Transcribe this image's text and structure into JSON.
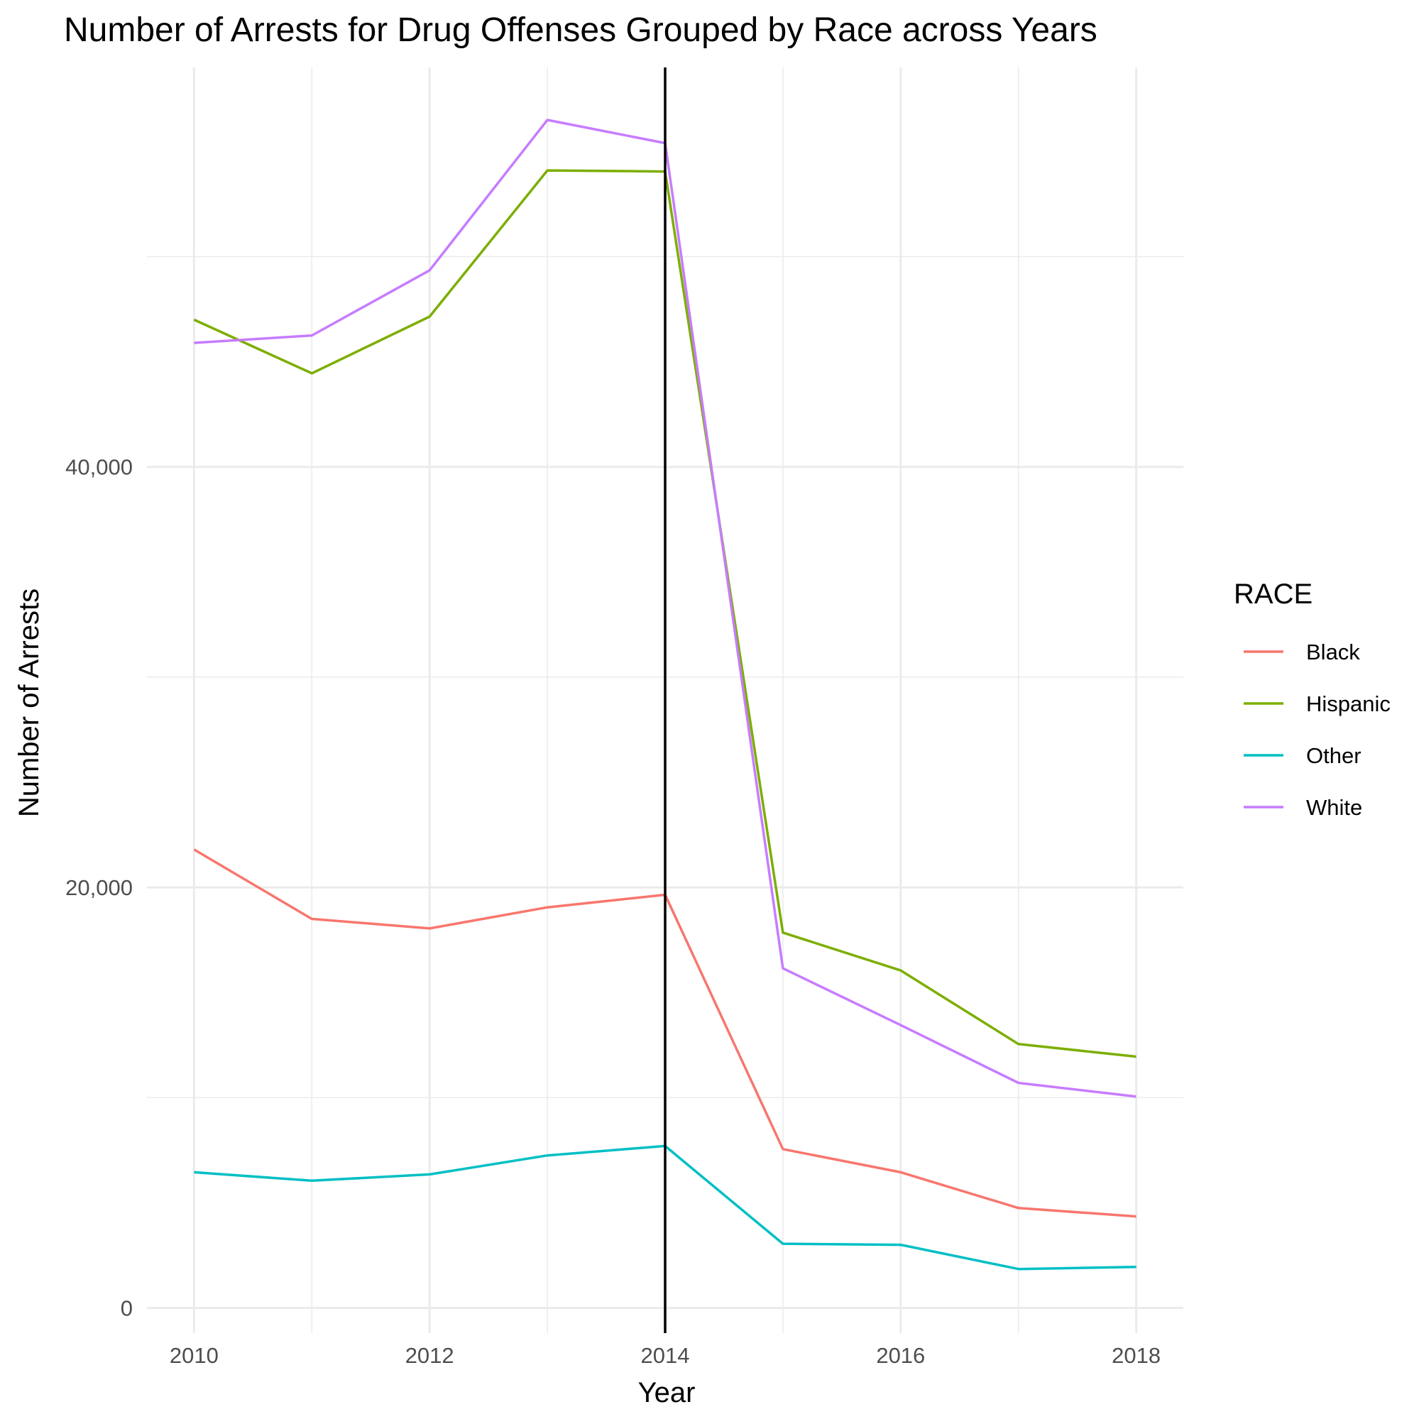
{
  "chart_data": {
    "type": "line",
    "title": "Number of Arrests for Drug Offenses Grouped by Race across Years",
    "xlabel": "Year",
    "ylabel": "Number of Arrests",
    "x": [
      2010,
      2011,
      2012,
      2013,
      2014,
      2015,
      2016,
      2017,
      2018
    ],
    "x_ticks": [
      2010,
      2012,
      2014,
      2016,
      2018
    ],
    "x_tick_labels": [
      "2010",
      "2012",
      "2014",
      "2016",
      "2018"
    ],
    "xlim": [
      2009.6,
      2018.4
    ],
    "y_ticks": [
      0,
      20000,
      40000
    ],
    "y_tick_labels": [
      "0",
      "20,000",
      "40,000"
    ],
    "ylim": [
      -1200,
      59000
    ],
    "grid": true,
    "vline": {
      "x": 2014,
      "color": "#000000"
    },
    "legend": {
      "title": "RACE",
      "position": "right"
    },
    "series": [
      {
        "name": "Black",
        "color": "#F8766D",
        "values": [
          21800,
          18500,
          18050,
          19050,
          19650,
          7550,
          6450,
          4750,
          4350
        ]
      },
      {
        "name": "Hispanic",
        "color": "#7CAE00",
        "values": [
          47000,
          44450,
          47150,
          54100,
          54050,
          17850,
          16050,
          12550,
          11950
        ]
      },
      {
        "name": "Other",
        "color": "#00BFC4",
        "values": [
          6450,
          6050,
          6350,
          7250,
          7700,
          3050,
          3000,
          1850,
          1950
        ]
      },
      {
        "name": "White",
        "color": "#C77CFF",
        "values": [
          45900,
          46250,
          49350,
          56500,
          55400,
          16150,
          13450,
          10700,
          10050
        ]
      }
    ]
  }
}
